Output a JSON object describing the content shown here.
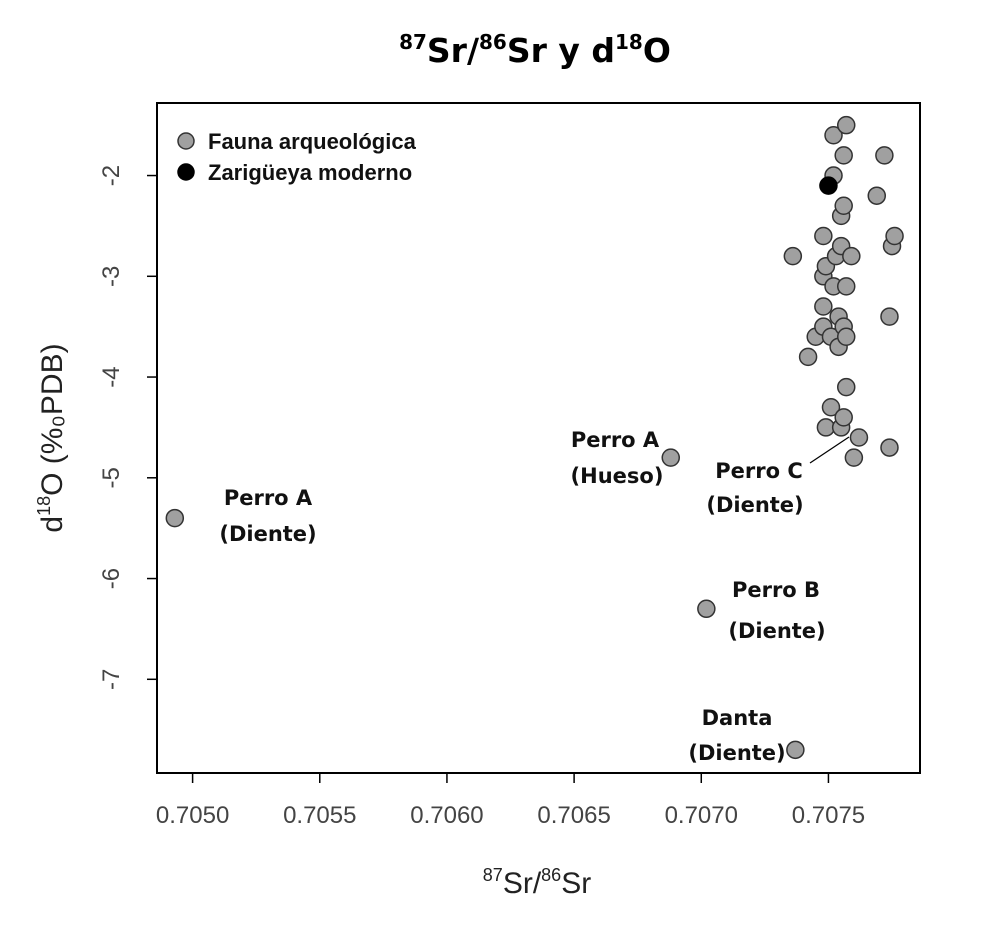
{
  "chart_data": {
    "type": "scatter",
    "title": {
      "sup1": "87",
      "t1": "Sr/",
      "sup2": "86",
      "t2": "Sr y d",
      "sup3": "18",
      "t3": "O"
    },
    "xlabel": {
      "sup1": "87",
      "t1": "Sr/",
      "sup2": "86",
      "t2": "Sr"
    },
    "ylabel": {
      "t1": "d",
      "sup1": "18",
      "t2": "O (%₀PDB)"
    },
    "xlim": [
      0.70486,
      0.70786
    ],
    "ylim": [
      -7.93,
      -1.28
    ],
    "xticks": [
      0.705,
      0.7055,
      0.706,
      0.7065,
      0.707,
      0.7075
    ],
    "xtick_labels": [
      "0.7050",
      "0.7055",
      "0.7060",
      "0.7065",
      "0.7070",
      "0.7075"
    ],
    "yticks": [
      -2,
      -3,
      -4,
      -5,
      -6,
      -7
    ],
    "ytick_labels": [
      "-2",
      "-3",
      "-4",
      "-5",
      "-6",
      "-7"
    ],
    "grid": false,
    "legend_position": "top-left",
    "series": [
      {
        "name": "Fauna arqueológica",
        "color": "#a0a0a0",
        "points": [
          {
            "x": 0.70493,
            "y": -5.4
          },
          {
            "x": 0.70688,
            "y": -4.8
          },
          {
            "x": 0.70702,
            "y": -6.3
          },
          {
            "x": 0.70737,
            "y": -7.7
          },
          {
            "x": 0.70736,
            "y": -2.8
          },
          {
            "x": 0.70742,
            "y": -3.8
          },
          {
            "x": 0.70745,
            "y": -3.6
          },
          {
            "x": 0.70748,
            "y": -2.6
          },
          {
            "x": 0.70748,
            "y": -3.0
          },
          {
            "x": 0.70748,
            "y": -3.3
          },
          {
            "x": 0.70748,
            "y": -3.5
          },
          {
            "x": 0.70749,
            "y": -2.9
          },
          {
            "x": 0.70749,
            "y": -4.5
          },
          {
            "x": 0.70751,
            "y": -3.6
          },
          {
            "x": 0.70751,
            "y": -4.3
          },
          {
            "x": 0.70752,
            "y": -3.1
          },
          {
            "x": 0.70752,
            "y": -1.6
          },
          {
            "x": 0.70752,
            "y": -2.0
          },
          {
            "x": 0.70753,
            "y": -2.8
          },
          {
            "x": 0.70754,
            "y": -3.4
          },
          {
            "x": 0.70754,
            "y": -3.7
          },
          {
            "x": 0.70755,
            "y": -2.4
          },
          {
            "x": 0.70755,
            "y": -2.7
          },
          {
            "x": 0.70755,
            "y": -4.5
          },
          {
            "x": 0.70756,
            "y": -1.8
          },
          {
            "x": 0.70756,
            "y": -2.3
          },
          {
            "x": 0.70756,
            "y": -3.5
          },
          {
            "x": 0.70756,
            "y": -4.4
          },
          {
            "x": 0.70757,
            "y": -1.5
          },
          {
            "x": 0.70757,
            "y": -3.1
          },
          {
            "x": 0.70757,
            "y": -3.6
          },
          {
            "x": 0.70757,
            "y": -4.1
          },
          {
            "x": 0.70759,
            "y": -2.8
          },
          {
            "x": 0.7076,
            "y": -4.8
          },
          {
            "x": 0.70762,
            "y": -4.6
          },
          {
            "x": 0.70769,
            "y": -2.2
          },
          {
            "x": 0.70772,
            "y": -1.8
          },
          {
            "x": 0.70774,
            "y": -3.4
          },
          {
            "x": 0.70774,
            "y": -4.7
          },
          {
            "x": 0.70775,
            "y": -2.7
          },
          {
            "x": 0.70776,
            "y": -2.6
          }
        ]
      },
      {
        "name": "Zarigüeya moderno",
        "color": "#000000",
        "points": [
          {
            "x": 0.7075,
            "y": -2.1
          }
        ]
      }
    ],
    "annotations": [
      {
        "lines": [
          "Perro A",
          "(Diente)"
        ]
      },
      {
        "lines": [
          "Perro A",
          "(Hueso)"
        ]
      },
      {
        "lines": [
          "Perro C",
          "(Diente)"
        ]
      },
      {
        "lines": [
          "Perro B",
          "(Diente)"
        ]
      },
      {
        "lines": [
          "Danta",
          "(Diente)"
        ]
      }
    ]
  }
}
